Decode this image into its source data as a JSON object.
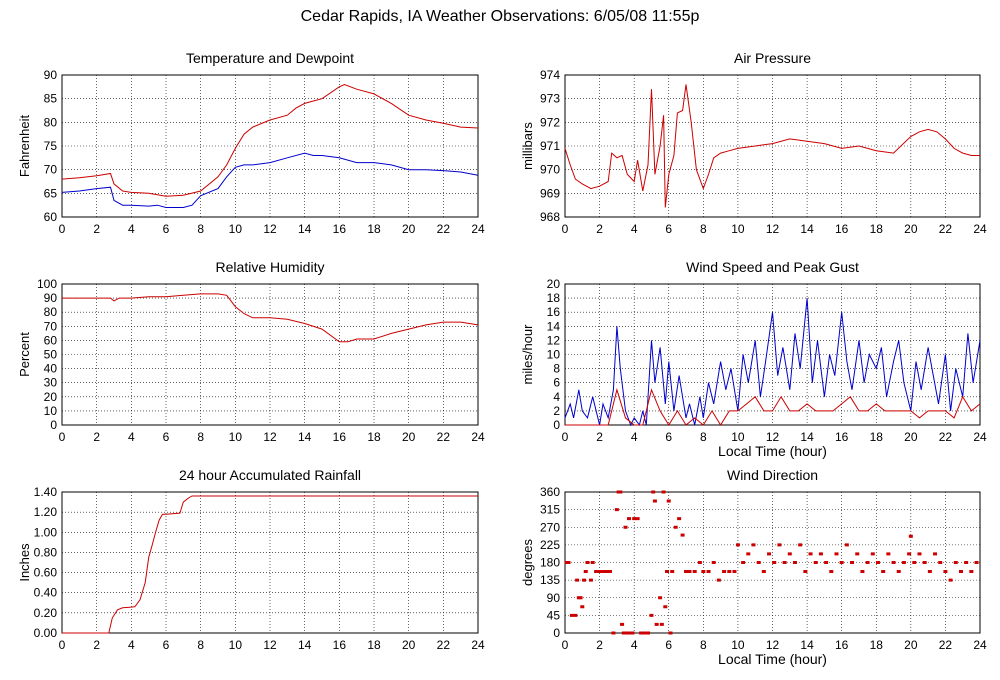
{
  "page_title": "Cedar Rapids, IA Weather Observations: 6/05/08 11:55p",
  "colors": {
    "red": "#cc0000",
    "blue": "#0000cc",
    "grid": "#000000",
    "frame": "#000000"
  },
  "chart_data": [
    {
      "id": "temp",
      "type": "line",
      "title": "Temperature and Dewpoint",
      "ylabel": "Fahrenheit",
      "xlabel": "",
      "xlim": [
        0,
        24
      ],
      "ylim": [
        60,
        90
      ],
      "yticks": [
        "60",
        "65",
        "70",
        "75",
        "80",
        "85",
        "90"
      ],
      "xticks": [
        "0",
        "2",
        "4",
        "6",
        "8",
        "10",
        "12",
        "14",
        "16",
        "18",
        "20",
        "22",
        "24"
      ],
      "series": [
        {
          "color": "#cc0000",
          "x": [
            0,
            1,
            2,
            2.8,
            3,
            3.5,
            4,
            5,
            6,
            7,
            8,
            9,
            9.5,
            10,
            10.5,
            11,
            12,
            13,
            13.5,
            14,
            14.5,
            15,
            16,
            16.3,
            17,
            18,
            19,
            20,
            21,
            22,
            23,
            24
          ],
          "y": [
            68,
            68.3,
            68.7,
            69.2,
            67,
            65.5,
            65.2,
            65,
            64.4,
            64.6,
            65.5,
            68.5,
            71,
            74.5,
            77.5,
            79,
            80.5,
            81.5,
            83,
            84,
            84.5,
            85,
            87.5,
            88,
            87,
            86,
            84,
            81.5,
            80.5,
            79.8,
            79,
            78.8
          ]
        },
        {
          "color": "#0000cc",
          "x": [
            0,
            1,
            2,
            2.8,
            3,
            3.5,
            4,
            5,
            5.5,
            6,
            7,
            7.5,
            8,
            9,
            9.5,
            10,
            10.5,
            11,
            12,
            13,
            14,
            14.5,
            15,
            16,
            17,
            18,
            19,
            20,
            21,
            22,
            23,
            24
          ],
          "y": [
            65.2,
            65.5,
            66,
            66.3,
            63.5,
            62.5,
            62.5,
            62.3,
            62.5,
            62,
            62,
            62.5,
            64.5,
            66,
            68.5,
            70.5,
            71,
            71,
            71.5,
            72.5,
            73.5,
            73,
            73,
            72.5,
            71.5,
            71.5,
            71,
            70,
            70,
            69.8,
            69.5,
            68.8
          ]
        }
      ]
    },
    {
      "id": "pressure",
      "type": "line",
      "title": "Air Pressure",
      "ylabel": "millibars",
      "xlabel": "",
      "xlim": [
        0,
        24
      ],
      "ylim": [
        968,
        974
      ],
      "yticks": [
        "968",
        "969",
        "970",
        "971",
        "972",
        "973",
        "974"
      ],
      "xticks": [
        "0",
        "2",
        "4",
        "6",
        "8",
        "10",
        "12",
        "14",
        "16",
        "18",
        "20",
        "22",
        "24"
      ],
      "series": [
        {
          "color": "#cc0000",
          "x": [
            0,
            0.3,
            0.6,
            1,
            1.5,
            2,
            2.5,
            2.7,
            3,
            3.3,
            3.6,
            4,
            4.2,
            4.5,
            4.8,
            5,
            5.2,
            5.5,
            5.7,
            5.8,
            6,
            6.3,
            6.5,
            6.8,
            7,
            7.3,
            7.6,
            8,
            8.3,
            8.6,
            9,
            9.5,
            10,
            11,
            12,
            13,
            14,
            15,
            16,
            17,
            18,
            19,
            20,
            20.5,
            21,
            21.5,
            22,
            22.5,
            23,
            23.5,
            24
          ],
          "y": [
            970.9,
            970.2,
            969.6,
            969.4,
            969.2,
            969.3,
            969.5,
            970.7,
            970.5,
            970.6,
            969.8,
            969.5,
            970.4,
            969.1,
            970.2,
            973.4,
            969.8,
            971.0,
            972.3,
            968.4,
            969.8,
            970.6,
            972.4,
            972.5,
            973.6,
            972.0,
            970.0,
            969.2,
            969.8,
            970.5,
            970.7,
            970.8,
            970.9,
            971.0,
            971.1,
            971.3,
            971.2,
            971.1,
            970.9,
            971.0,
            970.8,
            970.7,
            971.4,
            971.6,
            971.7,
            971.6,
            971.3,
            970.9,
            970.7,
            970.6,
            970.6
          ]
        }
      ]
    },
    {
      "id": "humidity",
      "type": "line",
      "title": "Relative Humidity",
      "ylabel": "Percent",
      "xlabel": "",
      "xlim": [
        0,
        24
      ],
      "ylim": [
        0,
        100
      ],
      "yticks": [
        "0",
        "10",
        "20",
        "30",
        "40",
        "50",
        "60",
        "70",
        "80",
        "90",
        "100"
      ],
      "xticks": [
        "0",
        "2",
        "4",
        "6",
        "8",
        "10",
        "12",
        "14",
        "16",
        "18",
        "20",
        "22",
        "24"
      ],
      "series": [
        {
          "color": "#cc0000",
          "x": [
            0,
            2,
            2.8,
            3,
            3.3,
            4,
            5,
            6,
            7,
            8,
            9,
            9.5,
            10,
            10.5,
            11,
            12,
            13,
            14,
            15,
            16,
            16.5,
            17,
            18,
            19,
            20,
            21,
            22,
            23,
            24
          ],
          "y": [
            90,
            90,
            90,
            88,
            90,
            90,
            91,
            91,
            92,
            93,
            93,
            92,
            84,
            79,
            76,
            76,
            75,
            72,
            68,
            59,
            59,
            61,
            61,
            65,
            68,
            71,
            73,
            73,
            71
          ]
        }
      ]
    },
    {
      "id": "wind",
      "type": "line",
      "title": "Wind Speed and Peak Gust",
      "ylabel": "miles/hour",
      "xlabel": "Local Time (hour)",
      "xlim": [
        0,
        24
      ],
      "ylim": [
        0,
        20
      ],
      "yticks": [
        "0",
        "2",
        "4",
        "6",
        "8",
        "10",
        "12",
        "14",
        "16",
        "18",
        "20"
      ],
      "xticks": [
        "0",
        "2",
        "4",
        "6",
        "8",
        "10",
        "12",
        "14",
        "16",
        "18",
        "20",
        "22",
        "24"
      ],
      "series": [
        {
          "color": "#0000cc",
          "x": [
            0,
            0.3,
            0.5,
            0.8,
            1,
            1.3,
            1.6,
            2,
            2.2,
            2.5,
            2.8,
            3,
            3.2,
            3.5,
            3.8,
            4,
            4.3,
            4.5,
            4.7,
            5,
            5.2,
            5.5,
            5.8,
            6,
            6.3,
            6.6,
            7,
            7.2,
            7.5,
            7.8,
            8,
            8.3,
            8.6,
            9,
            9.3,
            9.6,
            10,
            10.3,
            10.6,
            11,
            11.3,
            11.6,
            12,
            12.3,
            12.6,
            13,
            13.3,
            13.6,
            14,
            14.3,
            14.6,
            15,
            15.3,
            15.6,
            16,
            16.3,
            16.6,
            17,
            17.3,
            17.6,
            18,
            18.3,
            18.6,
            19,
            19.3,
            19.6,
            20,
            20.3,
            20.6,
            21,
            21.3,
            21.6,
            22,
            22.3,
            22.6,
            23,
            23.3,
            23.6,
            24
          ],
          "y": [
            1,
            3,
            1,
            5,
            2,
            1,
            4,
            0,
            3,
            1,
            5,
            14,
            8,
            2,
            0,
            1,
            0,
            2,
            0,
            12,
            6,
            11,
            3,
            9,
            2,
            7,
            1,
            3,
            0,
            4,
            1,
            6,
            3,
            9,
            5,
            8,
            2,
            10,
            6,
            12,
            4,
            9,
            16,
            7,
            11,
            5,
            13,
            8,
            18,
            6,
            12,
            4,
            10,
            7,
            16,
            9,
            5,
            12,
            6,
            10,
            8,
            11,
            4,
            9,
            12,
            6,
            2,
            9,
            5,
            11,
            7,
            3,
            10,
            2,
            8,
            4,
            13,
            6,
            12
          ]
        },
        {
          "color": "#cc0000",
          "x": [
            0,
            1,
            2,
            2.5,
            3,
            3.5,
            4,
            4.5,
            5,
            5.5,
            6,
            6.5,
            7,
            7.5,
            8,
            8.5,
            9,
            9.5,
            10,
            10.5,
            11,
            11.5,
            12,
            12.5,
            13,
            13.5,
            14,
            14.5,
            15,
            15.5,
            16,
            16.5,
            17,
            17.5,
            18,
            18.5,
            19,
            19.5,
            20,
            20.5,
            21,
            21.5,
            22,
            22.5,
            23,
            23.5,
            24
          ],
          "y": [
            0,
            0,
            0,
            0,
            5,
            1,
            0,
            0,
            5,
            2,
            0,
            2,
            0,
            1,
            0,
            2,
            0,
            2,
            2,
            3,
            4,
            2,
            2,
            4,
            2,
            2,
            3,
            2,
            2,
            2,
            3,
            4,
            2,
            2,
            3,
            2,
            2,
            2,
            2,
            1,
            2,
            2,
            2,
            1,
            4,
            2,
            3
          ]
        }
      ]
    },
    {
      "id": "rain",
      "type": "line",
      "title": "24 hour Accumulated Rainfall",
      "ylabel": "Inches",
      "xlabel": "",
      "xlim": [
        0,
        24
      ],
      "ylim": [
        0,
        1.4
      ],
      "yticks": [
        "0.00",
        "0.20",
        "0.40",
        "0.60",
        "0.80",
        "1.00",
        "1.20",
        "1.40"
      ],
      "xticks": [
        "0",
        "2",
        "4",
        "6",
        "8",
        "10",
        "12",
        "14",
        "16",
        "18",
        "20",
        "22",
        "24"
      ],
      "series": [
        {
          "color": "#cc0000",
          "x": [
            0,
            2.7,
            2.9,
            3.2,
            3.5,
            4.2,
            4.5,
            4.8,
            5.0,
            5.2,
            5.4,
            5.6,
            5.8,
            6.0,
            6.8,
            7.0,
            7.3,
            7.5,
            8,
            24
          ],
          "y": [
            0,
            0,
            0.15,
            0.23,
            0.25,
            0.26,
            0.33,
            0.5,
            0.75,
            0.87,
            1.0,
            1.12,
            1.18,
            1.18,
            1.19,
            1.3,
            1.34,
            1.36,
            1.36,
            1.36
          ]
        }
      ]
    },
    {
      "id": "winddir",
      "type": "scatter",
      "title": "Wind Direction",
      "ylabel": "degrees",
      "xlabel": "Local Time (hour)",
      "xlim": [
        0,
        24
      ],
      "ylim": [
        0,
        360
      ],
      "yticks": [
        "0",
        "45",
        "90",
        "135",
        "180",
        "225",
        "270",
        "315",
        "360"
      ],
      "xticks": [
        "0",
        "2",
        "4",
        "6",
        "8",
        "10",
        "12",
        "14",
        "16",
        "18",
        "20",
        "22",
        "24"
      ],
      "series": [
        {
          "color": "#cc0000",
          "x": [
            0.1,
            0.2,
            0.4,
            0.6,
            0.7,
            0.8,
            0.9,
            1.0,
            1.1,
            1.2,
            1.3,
            1.5,
            1.6,
            1.8,
            2.0,
            2.2,
            2.4,
            2.6,
            2.8,
            3.0,
            3.1,
            3.2,
            3.3,
            3.4,
            3.5,
            3.6,
            3.7,
            3.8,
            3.9,
            4.0,
            4.2,
            4.4,
            4.6,
            4.8,
            5.0,
            5.1,
            5.2,
            5.3,
            5.5,
            5.6,
            5.7,
            5.8,
            5.9,
            6.0,
            6.1,
            6.2,
            6.4,
            6.6,
            6.8,
            7.0,
            7.2,
            7.5,
            7.8,
            8.0,
            8.3,
            8.6,
            8.9,
            9.2,
            9.5,
            9.8,
            10.0,
            10.3,
            10.6,
            10.9,
            11.2,
            11.5,
            11.8,
            12.1,
            12.4,
            12.7,
            13.0,
            13.3,
            13.6,
            13.9,
            14.2,
            14.5,
            14.8,
            15.1,
            15.4,
            15.7,
            16.0,
            16.3,
            16.6,
            16.9,
            17.2,
            17.5,
            17.8,
            18.1,
            18.4,
            18.7,
            19.0,
            19.3,
            19.6,
            19.9,
            20.0,
            20.2,
            20.5,
            20.8,
            21.1,
            21.4,
            21.7,
            22.0,
            22.3,
            22.6,
            22.9,
            23.2,
            23.5,
            23.8
          ],
          "y": [
            180,
            180,
            45,
            45,
            135,
            90,
            90,
            67,
            135,
            157,
            180,
            135,
            180,
            157,
            157,
            157,
            157,
            157,
            0,
            315,
            360,
            360,
            22,
            0,
            270,
            0,
            292,
            0,
            0,
            292,
            292,
            0,
            0,
            0,
            45,
            360,
            337,
            22,
            90,
            22,
            360,
            67,
            157,
            337,
            0,
            157,
            270,
            292,
            250,
            157,
            157,
            157,
            180,
            157,
            157,
            180,
            135,
            157,
            157,
            157,
            225,
            180,
            202,
            225,
            180,
            157,
            202,
            180,
            225,
            180,
            202,
            180,
            225,
            157,
            202,
            180,
            202,
            180,
            157,
            202,
            180,
            225,
            180,
            202,
            157,
            180,
            202,
            180,
            157,
            202,
            180,
            157,
            180,
            202,
            247,
            180,
            202,
            180,
            157,
            202,
            180,
            157,
            135,
            180,
            157,
            180,
            157,
            180
          ]
        }
      ]
    }
  ]
}
